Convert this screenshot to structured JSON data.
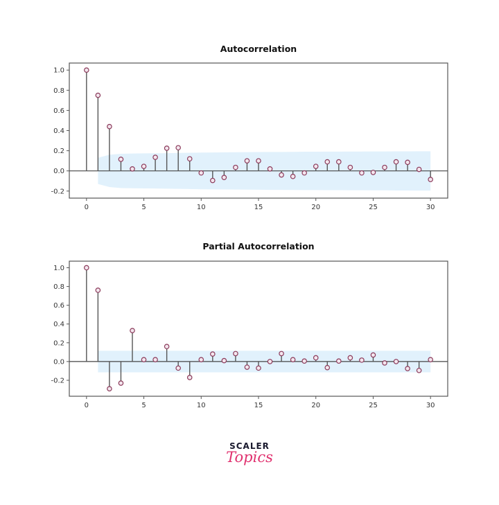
{
  "chart_data": [
    {
      "type": "stem",
      "title": "Autocorrelation",
      "xlim": [
        -1.5,
        31.5
      ],
      "ylim": [
        -0.27,
        1.07
      ],
      "xticks": [
        0,
        5,
        10,
        15,
        20,
        25,
        30
      ],
      "yticks": [
        -0.2,
        0.0,
        0.2,
        0.4,
        0.6,
        0.8,
        1.0
      ],
      "ytick_labels": [
        "-0.2",
        "0.0",
        "0.2",
        "0.4",
        "0.6",
        "0.8",
        "1.0"
      ],
      "x": [
        0,
        1,
        2,
        3,
        4,
        5,
        6,
        7,
        8,
        9,
        10,
        11,
        12,
        13,
        14,
        15,
        16,
        17,
        18,
        19,
        20,
        21,
        22,
        23,
        24,
        25,
        26,
        27,
        28,
        29,
        30
      ],
      "values": [
        1.0,
        0.75,
        0.44,
        0.115,
        0.02,
        0.045,
        0.135,
        0.225,
        0.23,
        0.12,
        -0.02,
        -0.095,
        -0.065,
        0.035,
        0.1,
        0.1,
        0.02,
        -0.04,
        -0.055,
        -0.02,
        0.045,
        0.09,
        0.09,
        0.035,
        -0.02,
        -0.015,
        0.035,
        0.09,
        0.085,
        0.015,
        -0.085
      ],
      "confidence_band": [
        0.13,
        0.16,
        0.17,
        0.172,
        0.174,
        0.175,
        0.176,
        0.178,
        0.18,
        0.182,
        0.183,
        0.184,
        0.185,
        0.186,
        0.187,
        0.188,
        0.188,
        0.189,
        0.19,
        0.19,
        0.191,
        0.191,
        0.192,
        0.192,
        0.193,
        0.193,
        0.194,
        0.194,
        0.195,
        0.195
      ],
      "colors": {
        "stem": "#555555",
        "marker_edge": "#8b3a5a",
        "marker_fill": "#f3e6ee",
        "band": "#dceefb"
      }
    },
    {
      "type": "stem",
      "title": "Partial Autocorrelation",
      "xlim": [
        -1.5,
        31.5
      ],
      "ylim": [
        -0.37,
        1.07
      ],
      "xticks": [
        0,
        5,
        10,
        15,
        20,
        25,
        30
      ],
      "yticks": [
        -0.2,
        0.0,
        0.2,
        0.4,
        0.6,
        0.8,
        1.0
      ],
      "ytick_labels": [
        "-0.2",
        "0.0",
        "0.2",
        "0.4",
        "0.6",
        "0.8",
        "1.0"
      ],
      "x": [
        0,
        1,
        2,
        3,
        4,
        5,
        6,
        7,
        8,
        9,
        10,
        11,
        12,
        13,
        14,
        15,
        16,
        17,
        18,
        19,
        20,
        21,
        22,
        23,
        24,
        25,
        26,
        27,
        28,
        29,
        30
      ],
      "values": [
        1.0,
        0.76,
        -0.29,
        -0.23,
        0.33,
        0.02,
        0.02,
        0.16,
        -0.07,
        -0.17,
        0.02,
        0.08,
        0.01,
        0.085,
        -0.06,
        -0.07,
        0.0,
        0.085,
        0.02,
        0.005,
        0.04,
        -0.065,
        0.005,
        0.04,
        0.015,
        0.07,
        -0.015,
        0.0,
        -0.075,
        -0.095,
        0.02
      ],
      "confidence_band": [
        0.115,
        0.115,
        0.115,
        0.115,
        0.115,
        0.115,
        0.115,
        0.115,
        0.115,
        0.115,
        0.115,
        0.115,
        0.115,
        0.115,
        0.115,
        0.115,
        0.115,
        0.115,
        0.115,
        0.115,
        0.115,
        0.115,
        0.115,
        0.115,
        0.115,
        0.115,
        0.115,
        0.115,
        0.115,
        0.115
      ],
      "colors": {
        "stem": "#555555",
        "marker_edge": "#8b3a5a",
        "marker_fill": "#f3e6ee",
        "band": "#dceefb"
      }
    }
  ],
  "logo": {
    "line1": "SCALER",
    "line2": "Topics"
  }
}
